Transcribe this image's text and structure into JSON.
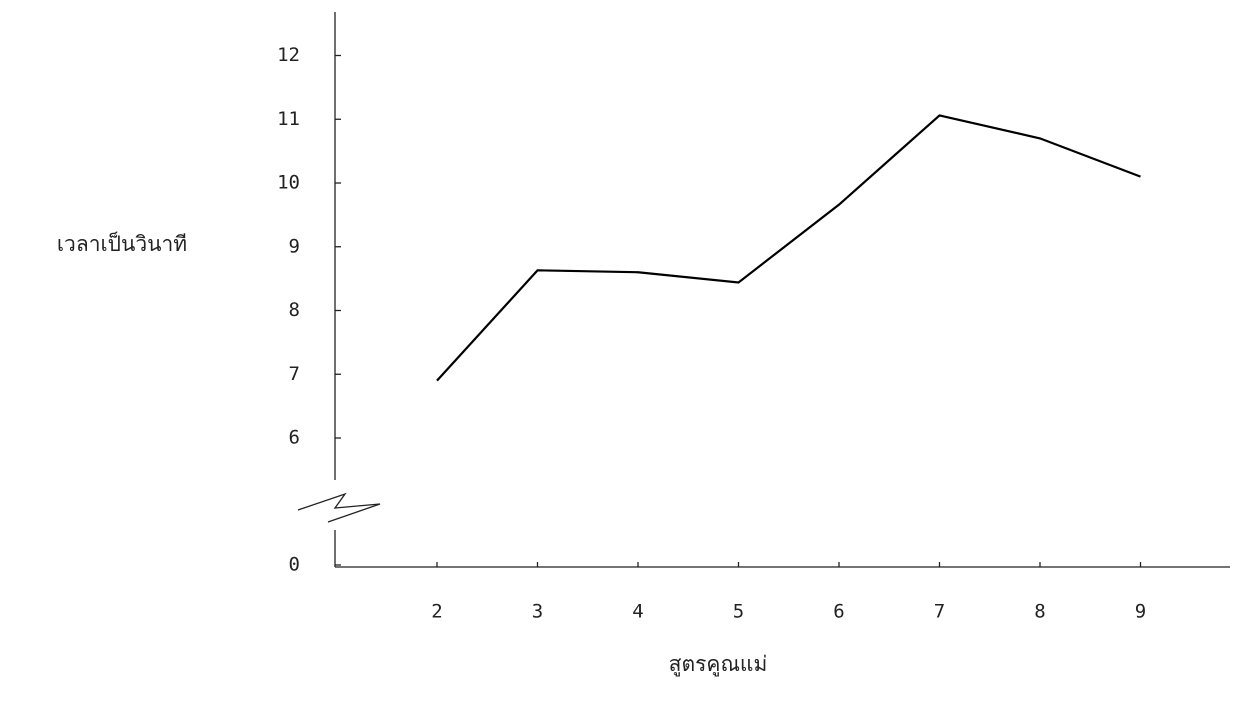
{
  "chart_data": {
    "type": "line",
    "x_label": "สูตรคูณแม่",
    "y_label": "เวลาเป็นวินาที",
    "categories": [
      "2",
      "3",
      "4",
      "5",
      "6",
      "7",
      "8",
      "9"
    ],
    "series": [
      {
        "color": "#000000",
        "values": [
          6.9,
          8.63,
          8.6,
          8.44,
          9.66,
          11.06,
          10.7,
          10.1
        ]
      }
    ],
    "ylim": [
      0,
      12.4
    ],
    "axis_break": [
      0,
      6
    ],
    "yticks": [
      0,
      6,
      7,
      8,
      9,
      10,
      11,
      12
    ],
    "grid": false
  }
}
